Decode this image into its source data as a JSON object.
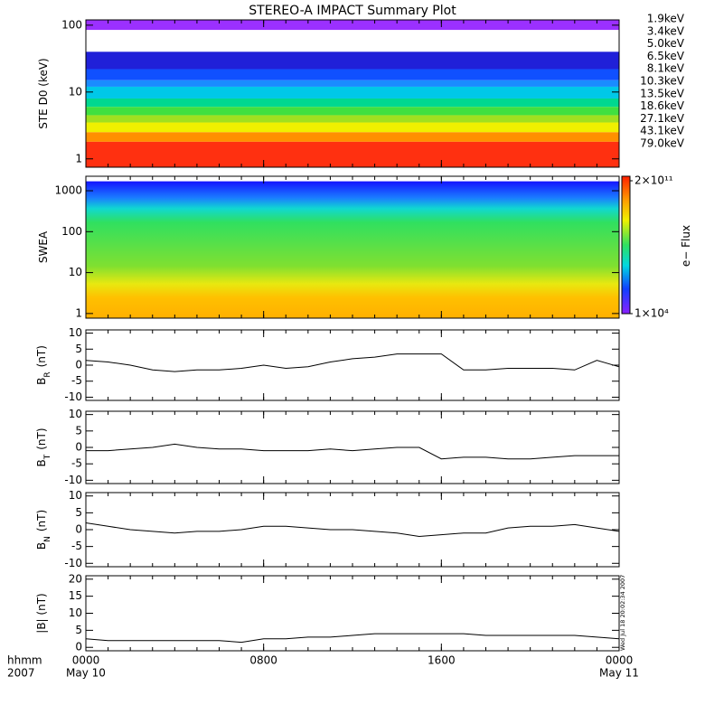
{
  "chart_data": [
    {
      "type": "band",
      "title": "STEREO-A IMPACT Summary Plot",
      "ylabel": "STE D0 (keV)",
      "ylog": true,
      "ylim": [
        0.75,
        120
      ],
      "yticks": [
        1,
        10,
        100
      ],
      "series": [
        {
          "name": "1.9keV",
          "color": "#9b30ff",
          "value": 85
        },
        {
          "name": "3.4keV",
          "color": "#2020d8",
          "value": 40
        },
        {
          "name": "5.0keV",
          "color": "#1050ff",
          "value": 22
        },
        {
          "name": "6.5keV",
          "color": "#1a8cff",
          "value": 15
        },
        {
          "name": "8.1keV",
          "color": "#00c8e8",
          "value": 12
        },
        {
          "name": "10.3keV",
          "color": "#00d890",
          "value": 8
        },
        {
          "name": "13.5keV",
          "color": "#40e040",
          "value": 6
        },
        {
          "name": "18.6keV",
          "color": "#a0e020",
          "value": 4.5
        },
        {
          "name": "27.1keV",
          "color": "#f0f000",
          "value": 3.5
        },
        {
          "name": "43.1keV",
          "color": "#ff9000",
          "value": 2.5
        },
        {
          "name": "79.0keV",
          "color": "#ff3010",
          "value": 1.8
        }
      ]
    },
    {
      "type": "spectrogram",
      "ylabel": "SWEA",
      "ylog": true,
      "ylim": [
        0.77,
        2260
      ],
      "yticks": [
        1,
        10,
        100,
        1000
      ],
      "max_energy": 1700,
      "colorbar": {
        "label": "e− Flux",
        "ticks": [
          {
            "value": 200000000000,
            "label": "2×10¹¹"
          },
          {
            "value": 10000,
            "label": "1×10⁴"
          }
        ]
      }
    },
    {
      "type": "line",
      "ylabel": "B",
      "ylabel_sub": "R",
      "ylabel_unit": "(nT)",
      "ylim": [
        -11,
        11
      ],
      "yticks": [
        -10,
        -5,
        0,
        5,
        10
      ],
      "x": [
        0,
        1,
        2,
        3,
        4,
        5,
        6,
        7,
        8,
        9,
        10,
        11,
        12,
        13,
        14,
        15,
        16,
        17,
        18,
        19,
        20,
        21,
        22,
        23,
        24
      ],
      "values": [
        1.5,
        1,
        0,
        -1.5,
        -2,
        -1.5,
        -1.5,
        -1,
        0,
        -1,
        -0.5,
        1,
        2,
        2.5,
        3.5,
        3.5,
        3.5,
        -1.5,
        -1.5,
        -1,
        -1,
        -1,
        -1.5,
        1.5,
        -0.5
      ]
    },
    {
      "type": "line",
      "ylabel": "B",
      "ylabel_sub": "T",
      "ylabel_unit": "(nT)",
      "ylim": [
        -11,
        11
      ],
      "yticks": [
        -10,
        -5,
        0,
        5,
        10
      ],
      "x": [
        0,
        1,
        2,
        3,
        4,
        5,
        6,
        7,
        8,
        9,
        10,
        11,
        12,
        13,
        14,
        15,
        16,
        17,
        18,
        19,
        20,
        21,
        22,
        23,
        24
      ],
      "values": [
        -1,
        -1,
        -0.5,
        0,
        1,
        0,
        -0.5,
        -0.5,
        -1,
        -1,
        -1,
        -0.5,
        -1,
        -0.5,
        0,
        0,
        -3.5,
        -3,
        -3,
        -3.5,
        -3.5,
        -3,
        -2.5,
        -2.5,
        -2.5
      ]
    },
    {
      "type": "line",
      "ylabel": "B",
      "ylabel_sub": "N",
      "ylabel_unit": "(nT)",
      "ylim": [
        -11,
        11
      ],
      "yticks": [
        -10,
        -5,
        0,
        5,
        10
      ],
      "x": [
        0,
        1,
        2,
        3,
        4,
        5,
        6,
        7,
        8,
        9,
        10,
        11,
        12,
        13,
        14,
        15,
        16,
        17,
        18,
        19,
        20,
        21,
        22,
        23,
        24
      ],
      "values": [
        2,
        1,
        0,
        -0.5,
        -1,
        -0.5,
        -0.5,
        0,
        1,
        1,
        0.5,
        0,
        0,
        -0.5,
        -1,
        -2,
        -1.5,
        -1,
        -1,
        0.5,
        1,
        1,
        1.5,
        0.5,
        -0.5
      ]
    },
    {
      "type": "line",
      "ylabel": "|B| (nT)",
      "ylim": [
        -1,
        21
      ],
      "yticks": [
        0,
        5,
        10,
        15,
        20
      ],
      "x": [
        0,
        1,
        2,
        3,
        4,
        5,
        6,
        7,
        8,
        9,
        10,
        11,
        12,
        13,
        14,
        15,
        16,
        17,
        18,
        19,
        20,
        21,
        22,
        23,
        24
      ],
      "values": [
        2.5,
        2,
        2,
        2,
        2,
        2,
        2,
        1.5,
        2.5,
        2.5,
        3,
        3,
        3.5,
        4,
        4,
        4,
        4,
        4,
        3.5,
        3.5,
        3.5,
        3.5,
        3.5,
        3,
        2.5
      ],
      "side_note": "Wed Jul 18 20:02:34 2007",
      "xlim": [
        0,
        24
      ],
      "xticks": [
        {
          "value": 0,
          "label": "0000"
        },
        {
          "value": 8,
          "label": "0800"
        },
        {
          "value": 16,
          "label": "1600"
        },
        {
          "value": 24,
          "label": "0000"
        }
      ],
      "dates": [
        {
          "value": 0,
          "label": "May 10"
        },
        {
          "value": 24,
          "label": "May 11"
        }
      ],
      "row_labels": [
        "hhmm",
        "2007"
      ]
    }
  ]
}
